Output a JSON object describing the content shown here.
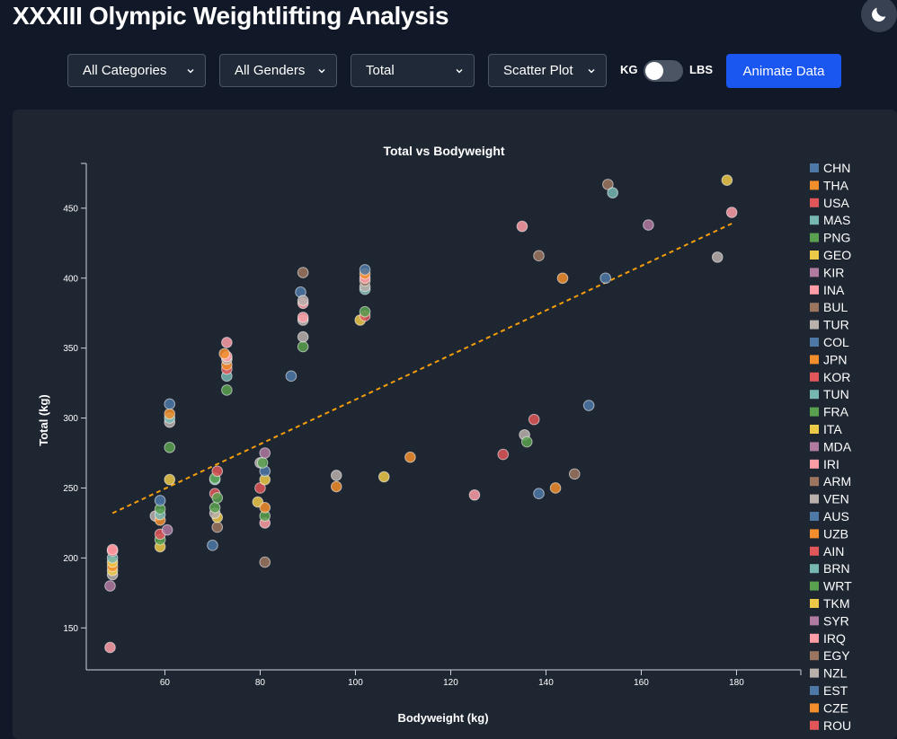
{
  "header": {
    "title": "XXXIII Olympic Weightlifting Analysis",
    "theme_icon": "moon-icon"
  },
  "controls": {
    "category": "All Categories",
    "gender": "All Genders",
    "metric": "Total",
    "chart_type": "Scatter Plot",
    "unit_left": "KG",
    "unit_right": "LBS",
    "animate_label": "Animate Data"
  },
  "colors": {
    "blue": "#4e79a7",
    "orange": "#f28e2b",
    "red": "#e15759",
    "teal": "#76b7b2",
    "green": "#59a14f",
    "yellow": "#edc948",
    "purple": "#b07aa1",
    "pink": "#ff9da7",
    "brown": "#9c755f",
    "gray": "#bab0ac",
    "trend": "#f59e0b"
  },
  "chart_data": {
    "type": "scatter",
    "title": "Total vs Bodyweight",
    "xlabel": "Bodyweight (kg)",
    "ylabel": "Total (kg)",
    "xlim": [
      43.5,
      193.5
    ],
    "ylim": [
      120,
      482
    ],
    "xticks": [
      60,
      80,
      100,
      120,
      140,
      160,
      180
    ],
    "yticks": [
      150,
      200,
      250,
      300,
      350,
      400,
      450
    ],
    "grid": false,
    "legend_position": "right",
    "legend": [
      "CHN",
      "THA",
      "USA",
      "MAS",
      "PNG",
      "GEO",
      "KIR",
      "INA",
      "BUL",
      "TUR",
      "COL",
      "JPN",
      "KOR",
      "TUN",
      "FRA",
      "ITA",
      "MDA",
      "IRI",
      "ARM",
      "VEN",
      "AUS",
      "UZB",
      "AIN",
      "BRN",
      "WRT",
      "TKM",
      "SYR",
      "IRQ",
      "EGY",
      "NZL",
      "EST",
      "CZE",
      "ROU"
    ],
    "trendline": {
      "x": [
        49,
        179
      ],
      "y": [
        232,
        439
      ]
    },
    "points": [
      {
        "x": 48.5,
        "y": 136,
        "c": "pink"
      },
      {
        "x": 48.5,
        "y": 180,
        "c": "purple"
      },
      {
        "x": 49,
        "y": 188,
        "c": "gray"
      },
      {
        "x": 49,
        "y": 191,
        "c": "yellow"
      },
      {
        "x": 49,
        "y": 194,
        "c": "orange"
      },
      {
        "x": 49,
        "y": 197,
        "c": "yellow"
      },
      {
        "x": 49,
        "y": 200,
        "c": "teal"
      },
      {
        "x": 49,
        "y": 205,
        "c": "red"
      },
      {
        "x": 49,
        "y": 206,
        "c": "pink"
      },
      {
        "x": 58,
        "y": 230,
        "c": "gray"
      },
      {
        "x": 59,
        "y": 208,
        "c": "yellow"
      },
      {
        "x": 59,
        "y": 213,
        "c": "green"
      },
      {
        "x": 59,
        "y": 217,
        "c": "red"
      },
      {
        "x": 59,
        "y": 227,
        "c": "orange"
      },
      {
        "x": 59,
        "y": 231,
        "c": "teal"
      },
      {
        "x": 59,
        "y": 235,
        "c": "green"
      },
      {
        "x": 59,
        "y": 241,
        "c": "blue"
      },
      {
        "x": 60.5,
        "y": 220,
        "c": "purple"
      },
      {
        "x": 61,
        "y": 256,
        "c": "yellow"
      },
      {
        "x": 61,
        "y": 279,
        "c": "green"
      },
      {
        "x": 61,
        "y": 297,
        "c": "gray"
      },
      {
        "x": 61,
        "y": 300,
        "c": "teal"
      },
      {
        "x": 61,
        "y": 303,
        "c": "orange"
      },
      {
        "x": 61,
        "y": 310,
        "c": "blue"
      },
      {
        "x": 70,
        "y": 209,
        "c": "blue"
      },
      {
        "x": 70.5,
        "y": 246,
        "c": "red"
      },
      {
        "x": 71,
        "y": 222,
        "c": "brown"
      },
      {
        "x": 71,
        "y": 229,
        "c": "yellow"
      },
      {
        "x": 70.5,
        "y": 232,
        "c": "gray"
      },
      {
        "x": 70.5,
        "y": 236,
        "c": "green"
      },
      {
        "x": 71,
        "y": 243,
        "c": "green"
      },
      {
        "x": 70.5,
        "y": 256,
        "c": "teal"
      },
      {
        "x": 70.5,
        "y": 257,
        "c": "green"
      },
      {
        "x": 71,
        "y": 262,
        "c": "red"
      },
      {
        "x": 73,
        "y": 320,
        "c": "green"
      },
      {
        "x": 73,
        "y": 330,
        "c": "teal"
      },
      {
        "x": 73,
        "y": 335,
        "c": "red"
      },
      {
        "x": 73,
        "y": 338,
        "c": "orange"
      },
      {
        "x": 73,
        "y": 342,
        "c": "gray"
      },
      {
        "x": 73,
        "y": 344,
        "c": "pink"
      },
      {
        "x": 72.5,
        "y": 346,
        "c": "orange"
      },
      {
        "x": 73,
        "y": 354,
        "c": "pink"
      },
      {
        "x": 79.5,
        "y": 240,
        "c": "yellow"
      },
      {
        "x": 80,
        "y": 250,
        "c": "red"
      },
      {
        "x": 80,
        "y": 268,
        "c": "gray"
      },
      {
        "x": 81,
        "y": 197,
        "c": "brown"
      },
      {
        "x": 81,
        "y": 225,
        "c": "pink"
      },
      {
        "x": 81,
        "y": 230,
        "c": "green"
      },
      {
        "x": 81,
        "y": 236,
        "c": "orange"
      },
      {
        "x": 81,
        "y": 256,
        "c": "yellow"
      },
      {
        "x": 81,
        "y": 262,
        "c": "blue"
      },
      {
        "x": 80.5,
        "y": 268,
        "c": "green"
      },
      {
        "x": 81,
        "y": 275,
        "c": "purple"
      },
      {
        "x": 86.5,
        "y": 330,
        "c": "blue"
      },
      {
        "x": 88.5,
        "y": 390,
        "c": "blue"
      },
      {
        "x": 89,
        "y": 351,
        "c": "green"
      },
      {
        "x": 89,
        "y": 358,
        "c": "gray"
      },
      {
        "x": 89,
        "y": 370,
        "c": "gray"
      },
      {
        "x": 89,
        "y": 372,
        "c": "pink"
      },
      {
        "x": 89,
        "y": 382,
        "c": "pink"
      },
      {
        "x": 89,
        "y": 384,
        "c": "gray"
      },
      {
        "x": 89,
        "y": 404,
        "c": "brown"
      },
      {
        "x": 96,
        "y": 251,
        "c": "orange"
      },
      {
        "x": 96,
        "y": 259,
        "c": "gray"
      },
      {
        "x": 101,
        "y": 370,
        "c": "yellow"
      },
      {
        "x": 102,
        "y": 373,
        "c": "red"
      },
      {
        "x": 102,
        "y": 376,
        "c": "green"
      },
      {
        "x": 102,
        "y": 392,
        "c": "teal"
      },
      {
        "x": 102,
        "y": 394,
        "c": "gray"
      },
      {
        "x": 102,
        "y": 398,
        "c": "brown"
      },
      {
        "x": 102,
        "y": 400,
        "c": "pink"
      },
      {
        "x": 102,
        "y": 403,
        "c": "orange"
      },
      {
        "x": 102,
        "y": 406,
        "c": "blue"
      },
      {
        "x": 106,
        "y": 258,
        "c": "yellow"
      },
      {
        "x": 111.5,
        "y": 272,
        "c": "orange"
      },
      {
        "x": 125,
        "y": 245,
        "c": "pink"
      },
      {
        "x": 131,
        "y": 274,
        "c": "red"
      },
      {
        "x": 135,
        "y": 437,
        "c": "pink"
      },
      {
        "x": 135.5,
        "y": 288,
        "c": "gray"
      },
      {
        "x": 136,
        "y": 283,
        "c": "green"
      },
      {
        "x": 137.5,
        "y": 299,
        "c": "red"
      },
      {
        "x": 138.5,
        "y": 246,
        "c": "blue"
      },
      {
        "x": 138.5,
        "y": 416,
        "c": "brown"
      },
      {
        "x": 142,
        "y": 250,
        "c": "orange"
      },
      {
        "x": 143.5,
        "y": 400,
        "c": "orange"
      },
      {
        "x": 146,
        "y": 260,
        "c": "brown"
      },
      {
        "x": 149,
        "y": 309,
        "c": "blue"
      },
      {
        "x": 152.5,
        "y": 400,
        "c": "blue"
      },
      {
        "x": 153,
        "y": 467,
        "c": "brown"
      },
      {
        "x": 154,
        "y": 461,
        "c": "teal"
      },
      {
        "x": 161.5,
        "y": 438,
        "c": "purple"
      },
      {
        "x": 176,
        "y": 415,
        "c": "gray"
      },
      {
        "x": 178,
        "y": 470,
        "c": "yellow"
      },
      {
        "x": 179,
        "y": 447,
        "c": "pink"
      }
    ]
  }
}
